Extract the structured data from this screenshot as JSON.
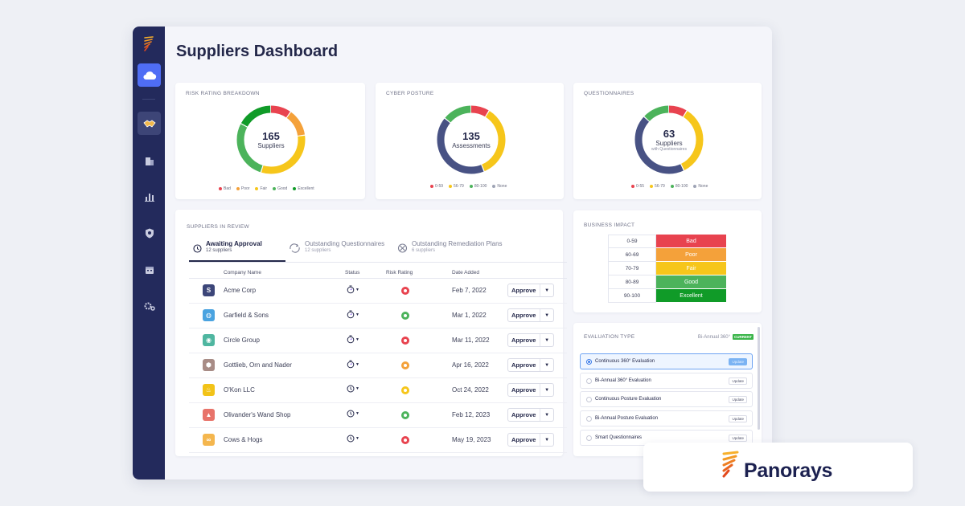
{
  "page": {
    "title": "Suppliers Dashboard"
  },
  "colors": {
    "bad": "#e8434f",
    "poor": "#f4a13a",
    "fair": "#f6c61b",
    "good": "#4cb35b",
    "excellent": "#109b28",
    "navy": "#485284",
    "sidebar": "#232a5c",
    "accent": "#4f6df5"
  },
  "sidebar": {
    "items": [
      {
        "icon": "cloud-icon"
      },
      {
        "icon": "handshake-icon"
      },
      {
        "icon": "building-icon"
      },
      {
        "icon": "bar-chart-icon"
      },
      {
        "icon": "shield-search-icon"
      },
      {
        "icon": "calendar-icon"
      },
      {
        "icon": "settings-icon"
      }
    ]
  },
  "risk_rating": {
    "title": "RISK RATING BREAKDOWN",
    "count": "165",
    "label": "Suppliers",
    "legend": [
      "Bad",
      "Poor",
      "Fair",
      "Good",
      "Excellent"
    ],
    "segments": [
      {
        "name": "Bad",
        "value": 10,
        "color": "#e8434f"
      },
      {
        "name": "Poor",
        "value": 13,
        "color": "#f4a13a"
      },
      {
        "name": "Fair",
        "value": 32,
        "color": "#f6c61b"
      },
      {
        "name": "Good",
        "value": 28,
        "color": "#4cb35b"
      },
      {
        "name": "Excellent",
        "value": 17,
        "color": "#109b28"
      }
    ]
  },
  "cyber_posture": {
    "title": "CYBER POSTURE",
    "count": "135",
    "label": "Assessments",
    "legend": [
      "0-59",
      "56-79",
      "80-100",
      "None"
    ],
    "segments": [
      {
        "name": "Red",
        "value": 9,
        "color": "#e8434f"
      },
      {
        "name": "Yellow",
        "value": 35,
        "color": "#f6c61b"
      },
      {
        "name": "Navy",
        "value": 42,
        "color": "#485284"
      },
      {
        "name": "Green",
        "value": 14,
        "color": "#4cb35b"
      }
    ]
  },
  "questionnaires": {
    "title": "QUESTIONNAIRES",
    "count": "63",
    "label": "Suppliers",
    "sublabel": "with Questionnaires",
    "legend": [
      "0-55",
      "56-79",
      "80-100",
      "None"
    ],
    "segments": [
      {
        "name": "Red",
        "value": 9,
        "color": "#e8434f"
      },
      {
        "name": "Yellow",
        "value": 34,
        "color": "#f6c61b"
      },
      {
        "name": "Navy",
        "value": 44,
        "color": "#485284"
      },
      {
        "name": "Green",
        "value": 13,
        "color": "#4cb35b"
      }
    ]
  },
  "suppliers_review": {
    "title": "SUPPLIERS IN REVIEW",
    "tabs": [
      {
        "label": "Awaiting Approval",
        "sub": "12 suppliers",
        "icon": "clock-icon"
      },
      {
        "label": "Outstanding Questionnaires",
        "sub": "12 suppliers",
        "icon": "cycle-icon"
      },
      {
        "label": "Outstanding Remediation Plans",
        "sub": "6 suppliers",
        "icon": "tools-icon"
      }
    ],
    "columns": {
      "company": "Company Name",
      "status": "Status",
      "rating": "Risk Rating",
      "date": "Date Added"
    },
    "approve_label": "Approve",
    "rows": [
      {
        "name": "Acme Corp",
        "date": "Feb 7, 2022",
        "logo_text": "S",
        "logo_color": "#3c4679",
        "rating_color": "#e8434f",
        "status": "timer"
      },
      {
        "name": "Garfield & Sons",
        "date": "Mar 1, 2022",
        "logo_text": "◍",
        "logo_color": "#4aa3e0",
        "rating_color": "#4cb35b",
        "status": "timer"
      },
      {
        "name": "Circle Group",
        "date": "Mar 11, 2022",
        "logo_text": "◉",
        "logo_color": "#4fb6a0",
        "rating_color": "#e8434f",
        "status": "timer"
      },
      {
        "name": "Gottlieb, Orn and Nader",
        "date": "Apr 16, 2022",
        "logo_text": "⬢",
        "logo_color": "#a88c86",
        "rating_color": "#f4a13a",
        "status": "timer"
      },
      {
        "name": "O'Kon LLC",
        "date": "Oct 24, 2022",
        "logo_text": "♨",
        "logo_color": "#f2c318",
        "rating_color": "#f6c61b",
        "status": "clock"
      },
      {
        "name": "Olivander's Wand Shop",
        "date": "Feb 12, 2023",
        "logo_text": "▲",
        "logo_color": "#e8736a",
        "rating_color": "#4cb35b",
        "status": "clock"
      },
      {
        "name": "Cows & Hogs",
        "date": "May 19, 2023",
        "logo_text": "∞",
        "logo_color": "#f4b64e",
        "rating_color": "#e8434f",
        "status": "clock"
      }
    ]
  },
  "business_impact": {
    "title": "BUSINESS IMPACT",
    "rows": [
      {
        "range": "0-59",
        "label": "Bad",
        "color": "#e8434f"
      },
      {
        "range": "60-69",
        "label": "Poor",
        "color": "#f4a13a"
      },
      {
        "range": "70-79",
        "label": "Fair",
        "color": "#f6c61b"
      },
      {
        "range": "80-89",
        "label": "Good",
        "color": "#4cb35b"
      },
      {
        "range": "90-100",
        "label": "Excellent",
        "color": "#109b28"
      }
    ]
  },
  "evaluation": {
    "title": "EVALUATION TYPE",
    "current_value": "Bi-Annual 360°",
    "current_badge": "CURRENT",
    "items": [
      {
        "label": "Continuous 360° Evaluation",
        "button": "Update",
        "selected": true
      },
      {
        "label": "Bi-Annual 360° Evaluation",
        "button": "Update",
        "selected": false
      },
      {
        "label": "Continuous Posture Evaluation",
        "button": "Update",
        "selected": false
      },
      {
        "label": "Bi-Annual Posture Evaluation",
        "button": "Update",
        "selected": false
      },
      {
        "label": "Smart Questionnaires",
        "button": "Update",
        "selected": false
      }
    ]
  },
  "brand": {
    "name": "Panorays"
  }
}
